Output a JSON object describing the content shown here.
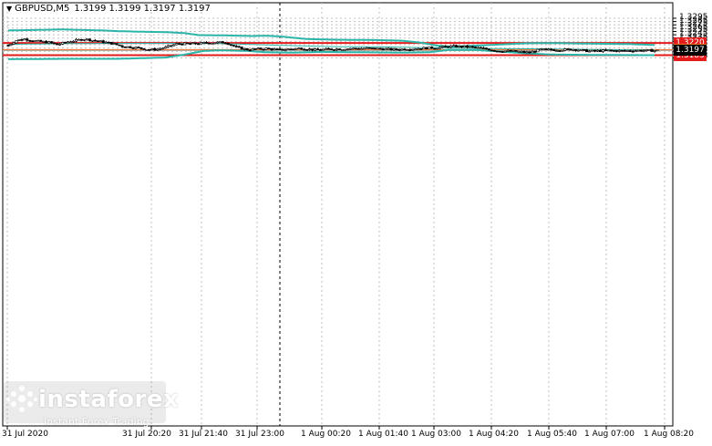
{
  "header": {
    "symbol": "GBPUSD,M5",
    "ohlc": "1.3199 1.3199 1.3197 1.3197"
  },
  "price_labels": [
    "1.3295",
    "1.3285",
    "1.3275",
    "1.3265",
    "1.3255",
    "1.3245",
    "1.3235",
    "1.3225",
    "1.3215",
    "1.3205",
    "1.3195",
    "1.3185",
    "1.3175"
  ],
  "time_labels": [
    "31 Jul 2020",
    "31 Jul 20:20",
    "31 Jul 21:40",
    "31 Jul 23:00",
    "1 Aug 00:20",
    "1 Aug 01:40",
    "1 Aug 03:00",
    "1 Aug 04:20",
    "1 Aug 05:40",
    "1 Aug 07:00",
    "1 Aug 08:20"
  ],
  "levels": [
    {
      "value": "1.3220",
      "color": "#e31b1b"
    },
    {
      "value": "1.3200",
      "color": "#f26b21"
    },
    {
      "value": "1.3183",
      "color": "#e31b1b"
    }
  ],
  "current_price": "1.3197",
  "logo": {
    "name": "instaforex",
    "tagline": "Instant Forex Trading"
  },
  "colors": {
    "band": "#2bb5a8",
    "ma": "#2bb5a8",
    "candle": "#000000",
    "grid": "#c0c0c0",
    "separator": "#000000"
  },
  "chart_data": {
    "type": "line",
    "title": "",
    "ylim": [
      1.317,
      1.33
    ],
    "bars": 240,
    "upper_band_knots": [
      [
        0,
        1.3258
      ],
      [
        20,
        1.3261
      ],
      [
        35,
        1.3258
      ],
      [
        40,
        1.3256
      ],
      [
        50,
        1.3254
      ],
      [
        58,
        1.3253
      ],
      [
        65,
        1.325
      ],
      [
        70,
        1.3244
      ],
      [
        80,
        1.3243
      ],
      [
        90,
        1.3241
      ],
      [
        95,
        1.3242
      ],
      [
        100,
        1.324
      ],
      [
        110,
        1.3232
      ],
      [
        120,
        1.323
      ],
      [
        135,
        1.3229
      ],
      [
        145,
        1.3227
      ],
      [
        152,
        1.3221
      ],
      [
        158,
        1.3212
      ],
      [
        163,
        1.3209
      ],
      [
        175,
        1.3213
      ],
      [
        190,
        1.3219
      ],
      [
        200,
        1.322
      ],
      [
        215,
        1.3218
      ],
      [
        228,
        1.3217
      ],
      [
        238,
        1.3214
      ]
    ],
    "middle_ma_knots": [
      [
        0,
        1.3216
      ],
      [
        20,
        1.3218
      ],
      [
        40,
        1.3219
      ],
      [
        60,
        1.3219
      ],
      [
        80,
        1.3218
      ],
      [
        100,
        1.3213
      ],
      [
        120,
        1.3209
      ],
      [
        140,
        1.3208
      ],
      [
        160,
        1.3205
      ],
      [
        180,
        1.3203
      ],
      [
        200,
        1.3202
      ],
      [
        220,
        1.32
      ],
      [
        238,
        1.3199
      ]
    ],
    "lower_band_knots": [
      [
        0,
        1.3171
      ],
      [
        20,
        1.3172
      ],
      [
        40,
        1.3172
      ],
      [
        58,
        1.3176
      ],
      [
        65,
        1.3185
      ],
      [
        72,
        1.3196
      ],
      [
        78,
        1.3198
      ],
      [
        88,
        1.3196
      ],
      [
        95,
        1.3192
      ],
      [
        105,
        1.3191
      ],
      [
        115,
        1.3193
      ],
      [
        130,
        1.3192
      ],
      [
        145,
        1.3191
      ],
      [
        155,
        1.3192
      ],
      [
        162,
        1.3199
      ],
      [
        172,
        1.3199
      ],
      [
        180,
        1.3195
      ],
      [
        190,
        1.3189
      ],
      [
        200,
        1.3185
      ],
      [
        215,
        1.3184
      ],
      [
        238,
        1.3183
      ]
    ],
    "close_knots": [
      [
        0,
        1.3213
      ],
      [
        3,
        1.3228
      ],
      [
        6,
        1.3232
      ],
      [
        10,
        1.3226
      ],
      [
        15,
        1.3222
      ],
      [
        18,
        1.3215
      ],
      [
        22,
        1.3224
      ],
      [
        28,
        1.3232
      ],
      [
        33,
        1.3226
      ],
      [
        38,
        1.3219
      ],
      [
        42,
        1.321
      ],
      [
        47,
        1.3206
      ],
      [
        52,
        1.32
      ],
      [
        55,
        1.3201
      ],
      [
        58,
        1.3207
      ],
      [
        62,
        1.3217
      ],
      [
        68,
        1.3218
      ],
      [
        74,
        1.3221
      ],
      [
        80,
        1.3222
      ],
      [
        84,
        1.3207
      ],
      [
        88,
        1.32
      ],
      [
        95,
        1.3203
      ],
      [
        100,
        1.3199
      ],
      [
        104,
        1.3202
      ],
      [
        108,
        1.3204
      ],
      [
        113,
        1.3199
      ],
      [
        118,
        1.3201
      ],
      [
        125,
        1.3203
      ],
      [
        132,
        1.3204
      ],
      [
        138,
        1.3202
      ],
      [
        142,
        1.32
      ],
      [
        147,
        1.3202
      ],
      [
        152,
        1.3204
      ],
      [
        158,
        1.3206
      ],
      [
        163,
        1.321
      ],
      [
        170,
        1.3208
      ],
      [
        176,
        1.3202
      ],
      [
        180,
        1.3196
      ],
      [
        186,
        1.3195
      ],
      [
        192,
        1.3191
      ],
      [
        196,
        1.32
      ],
      [
        202,
        1.3199
      ],
      [
        208,
        1.3201
      ],
      [
        214,
        1.3195
      ],
      [
        220,
        1.3197
      ],
      [
        226,
        1.3196
      ],
      [
        232,
        1.3197
      ],
      [
        238,
        1.3197
      ]
    ]
  }
}
